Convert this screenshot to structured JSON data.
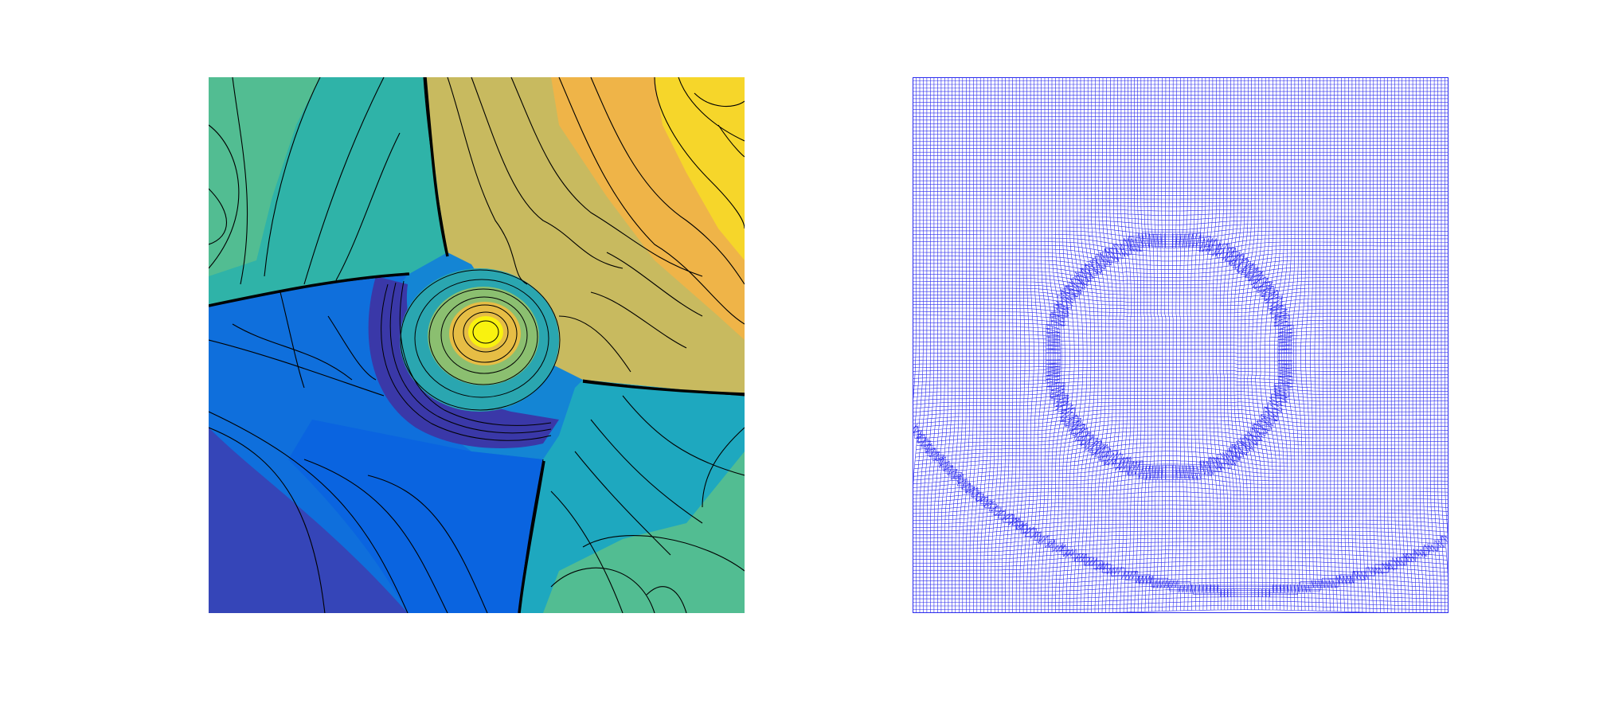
{
  "figure": {
    "panels": [
      {
        "kind": "filled-contour-plot",
        "colormap": "parula",
        "contour_line_color": "#000000",
        "has_axes_labels": false,
        "has_colorbar": false
      },
      {
        "kind": "adaptive-moving-mesh",
        "line_color": "#2a2aee",
        "has_axes_labels": false
      }
    ]
  },
  "colors": {
    "background": "#ffffff",
    "mesh": "#2a2aee",
    "contour_lines": "#000000",
    "parula": [
      "#352a87",
      "#0363e1",
      "#1485d4",
      "#06a7c6",
      "#38b99e",
      "#92bf73",
      "#d9ba56",
      "#fcce2e",
      "#f9fb0e"
    ]
  }
}
